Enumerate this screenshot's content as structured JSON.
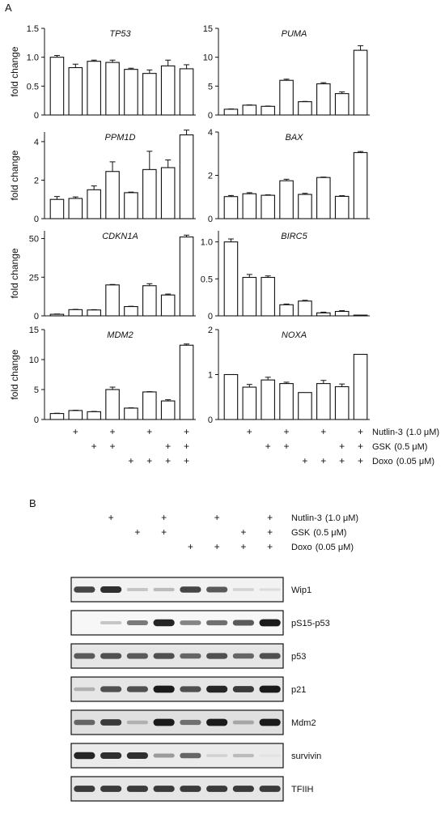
{
  "figure": {
    "panel_a_label": "A",
    "panel_b_label": "B",
    "ylabel": "fold change",
    "treatments": [
      {
        "name": "Nutlin-3",
        "dose": "(1.0 μM)",
        "pattern": [
          0,
          1,
          0,
          1,
          0,
          1,
          0,
          1
        ]
      },
      {
        "name": "GSK",
        "dose": "(0.5 μM)",
        "pattern": [
          0,
          0,
          1,
          1,
          0,
          0,
          1,
          1
        ]
      },
      {
        "name": "Doxo",
        "dose": "(0.05 μM)",
        "pattern": [
          0,
          0,
          0,
          0,
          1,
          1,
          1,
          1
        ]
      }
    ],
    "plus_symbol": "+"
  },
  "chart_data": [
    {
      "type": "bar",
      "title": "TP53",
      "ylabel": "fold change",
      "ylim": [
        0,
        1.5
      ],
      "yticks": [
        0,
        0.5,
        1.0,
        1.5
      ],
      "tick_labels": [
        "0",
        "0.5",
        "1.0",
        "1.5"
      ],
      "values": [
        1.0,
        0.82,
        0.93,
        0.91,
        0.79,
        0.72,
        0.85,
        0.8
      ],
      "errors": [
        0.03,
        0.06,
        0.02,
        0.04,
        0.02,
        0.06,
        0.1,
        0.07
      ]
    },
    {
      "type": "bar",
      "title": "PUMA",
      "ylabel": "",
      "ylim": [
        0,
        15
      ],
      "yticks": [
        0,
        5,
        10,
        15
      ],
      "tick_labels": [
        "0",
        "5",
        "10",
        "15"
      ],
      "values": [
        1.0,
        1.7,
        1.5,
        6.0,
        2.3,
        5.4,
        3.7,
        11.2
      ],
      "errors": [
        0.05,
        0.05,
        0.05,
        0.2,
        0.05,
        0.2,
        0.3,
        0.8
      ]
    },
    {
      "type": "bar",
      "title": "PPM1D",
      "ylabel": "fold change",
      "ylim": [
        0,
        4.5
      ],
      "yticks": [
        0,
        2,
        4
      ],
      "tick_labels": [
        "0",
        "2",
        "4"
      ],
      "values": [
        1.0,
        1.05,
        1.5,
        2.45,
        1.35,
        2.55,
        2.65,
        4.35
      ],
      "errors": [
        0.15,
        0.08,
        0.2,
        0.5,
        0.03,
        0.95,
        0.4,
        0.25
      ]
    },
    {
      "type": "bar",
      "title": "BAX",
      "ylabel": "",
      "ylim": [
        0,
        4
      ],
      "yticks": [
        0,
        2,
        4
      ],
      "tick_labels": [
        "0",
        "2",
        "4"
      ],
      "values": [
        1.02,
        1.15,
        1.08,
        1.75,
        1.12,
        1.9,
        1.03,
        3.05
      ],
      "errors": [
        0.05,
        0.05,
        0.02,
        0.07,
        0.05,
        0.02,
        0.03,
        0.05
      ]
    },
    {
      "type": "bar",
      "title": "CDKN1A",
      "ylabel": "fold change",
      "ylim": [
        0,
        55
      ],
      "yticks": [
        0,
        25,
        50
      ],
      "tick_labels": [
        "0",
        "25",
        "50"
      ],
      "values": [
        1.0,
        4.0,
        3.8,
        20.0,
        6.0,
        19.5,
        13.5,
        51.0
      ],
      "errors": [
        0.2,
        0.2,
        0.2,
        0.3,
        0.2,
        1.3,
        0.6,
        1.2
      ]
    },
    {
      "type": "bar",
      "title": "BIRC5",
      "ylabel": "",
      "ylim": [
        0,
        1.15
      ],
      "yticks": [
        0,
        0.5,
        1.0
      ],
      "tick_labels": [
        "0",
        "0.5",
        "1.0"
      ],
      "values": [
        1.0,
        0.52,
        0.52,
        0.15,
        0.2,
        0.04,
        0.06,
        0.01
      ],
      "errors": [
        0.04,
        0.04,
        0.02,
        0.01,
        0.01,
        0.01,
        0.01,
        0.0
      ]
    },
    {
      "type": "bar",
      "title": "MDM2",
      "ylabel": "fold change",
      "ylim": [
        0,
        15
      ],
      "yticks": [
        0,
        5,
        10,
        15
      ],
      "tick_labels": [
        "0",
        "5",
        "10",
        "15"
      ],
      "values": [
        1.0,
        1.5,
        1.3,
        5.0,
        1.9,
        4.6,
        3.1,
        12.4
      ],
      "errors": [
        0.05,
        0.05,
        0.05,
        0.4,
        0.05,
        0.05,
        0.2,
        0.2
      ]
    },
    {
      "type": "bar",
      "title": "NOXA",
      "ylabel": "",
      "ylim": [
        0,
        2
      ],
      "yticks": [
        0,
        1,
        2
      ],
      "tick_labels": [
        "0",
        "1",
        "2"
      ],
      "values": [
        1.0,
        0.72,
        0.88,
        0.8,
        0.6,
        0.8,
        0.73,
        1.45
      ],
      "errors": [
        0.0,
        0.06,
        0.06,
        0.03,
        0.0,
        0.07,
        0.06,
        0.0
      ]
    }
  ],
  "blots": [
    {
      "label": "Wip1",
      "band": [
        0.75,
        0.85,
        0.15,
        0.2,
        0.75,
        0.65,
        0.1,
        0.05
      ],
      "tint": 0.05
    },
    {
      "label": "pS15-p53",
      "band": [
        0.0,
        0.15,
        0.5,
        0.9,
        0.45,
        0.55,
        0.65,
        0.95
      ],
      "tint": 0.03
    },
    {
      "label": "p53",
      "band": [
        0.65,
        0.7,
        0.65,
        0.7,
        0.6,
        0.7,
        0.6,
        0.7
      ],
      "tint": 0.1
    },
    {
      "label": "p21",
      "band": [
        0.25,
        0.7,
        0.7,
        0.95,
        0.7,
        0.9,
        0.8,
        0.95
      ],
      "tint": 0.1
    },
    {
      "label": "Mdm2",
      "band": [
        0.6,
        0.8,
        0.25,
        0.95,
        0.55,
        0.95,
        0.3,
        0.95
      ],
      "tint": 0.12
    },
    {
      "label": "survivin",
      "band": [
        0.9,
        0.85,
        0.85,
        0.35,
        0.6,
        0.1,
        0.2,
        0.02
      ],
      "tint": 0.08
    },
    {
      "label": "TFIIH",
      "band": [
        0.8,
        0.8,
        0.8,
        0.8,
        0.8,
        0.8,
        0.8,
        0.8
      ],
      "tint": 0.1
    }
  ]
}
